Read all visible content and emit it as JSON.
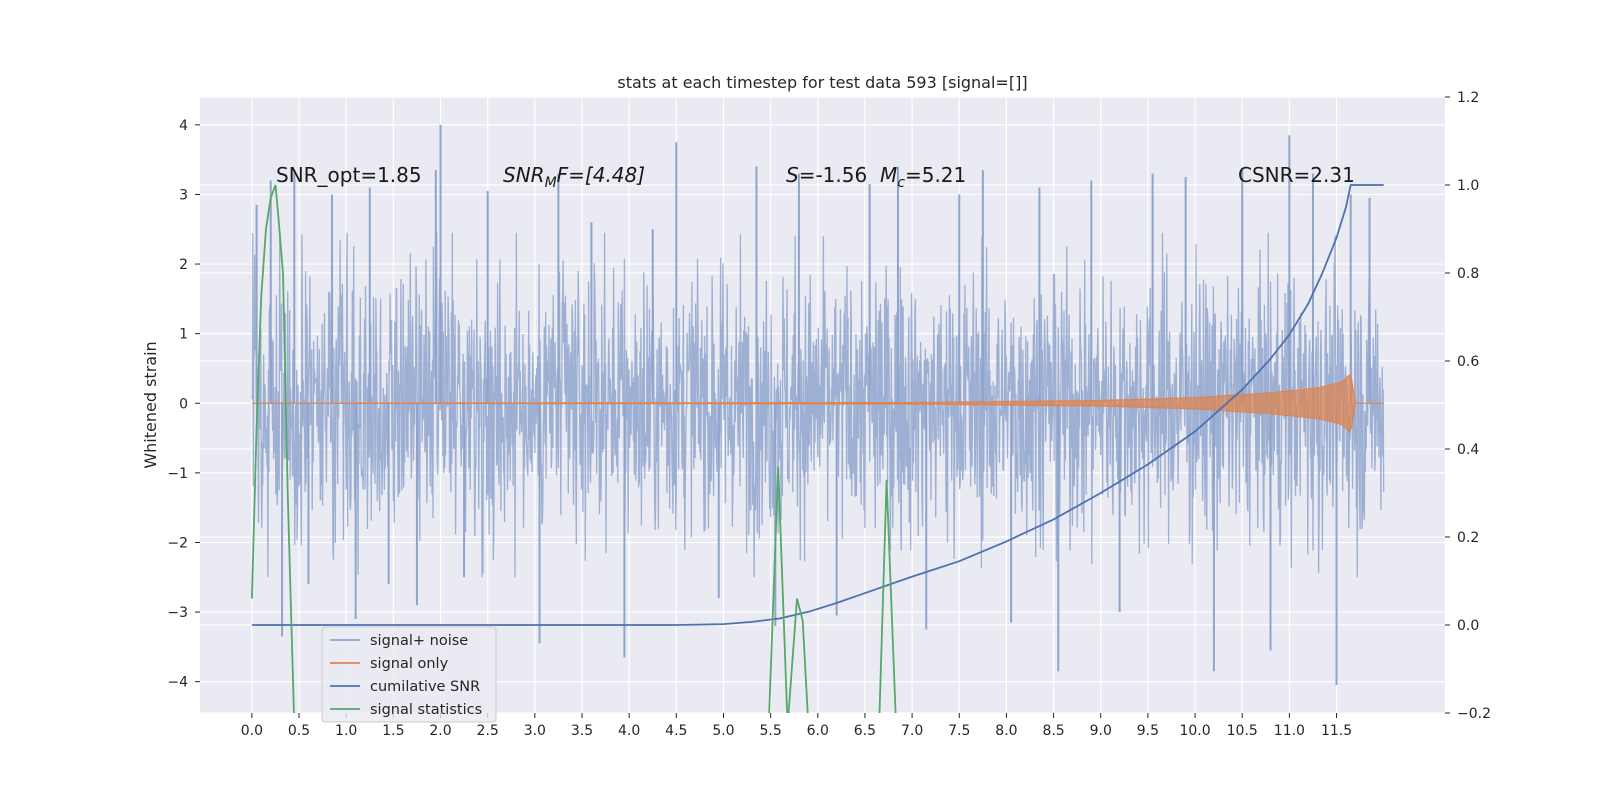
{
  "chart_data": {
    "type": "line",
    "title": "stats at each timestep for test data 593 [signal=[]]",
    "ylabel": "Whitened strain",
    "xlabel": "",
    "x_ticks": [
      "0.0",
      "0.5",
      "1.0",
      "1.5",
      "2.0",
      "2.5",
      "3.0",
      "3.5",
      "4.0",
      "4.5",
      "5.0",
      "5.5",
      "6.0",
      "6.5",
      "7.0",
      "7.5",
      "8.0",
      "8.5",
      "9.0",
      "9.5",
      "10.0",
      "10.5",
      "11.0",
      "11.5"
    ],
    "xlim": [
      -0.55,
      12.65
    ],
    "ylim_left": [
      -4.45,
      4.4
    ],
    "ylim_right": [
      -0.2,
      1.2
    ],
    "y_ticks_left": [
      "4",
      "3",
      "2",
      "1",
      "0",
      "−1",
      "−2",
      "−3",
      "−4"
    ],
    "y_ticks_right": [
      "1.2",
      "1.0",
      "0.8",
      "0.6",
      "0.4",
      "0.2",
      "0.0",
      "−0.2"
    ],
    "grid": true,
    "legend_position": "lower-left",
    "annotations": {
      "snr_opt": "SNR_opt=1.85",
      "snr_mf_label": "SNR",
      "snr_mf_sub": "M",
      "snr_mf_value": "F=[4.48]",
      "s_label": "S",
      "s_value": "=-1.56",
      "mc_label": "M",
      "mc_sub": "c",
      "mc_value": "=5.21",
      "csnr": "CSNR=2.31"
    },
    "series": [
      {
        "name": "signal+ noise",
        "color": "#8fa4cc",
        "axis": "left",
        "noise_envelope": {
          "x_start": 0.0,
          "x_end": 12.0,
          "typical_range": [
            -1.95,
            1.9
          ],
          "spikes": [
            [
              0.05,
              2.85
            ],
            [
              0.2,
              3.2
            ],
            [
              0.32,
              -3.35
            ],
            [
              0.45,
              3.35
            ],
            [
              0.6,
              -2.6
            ],
            [
              0.85,
              3.0
            ],
            [
              1.1,
              -3.1
            ],
            [
              1.25,
              3.1
            ],
            [
              1.45,
              -2.6
            ],
            [
              1.75,
              -2.9
            ],
            [
              1.95,
              3.35
            ],
            [
              2.0,
              4.0
            ],
            [
              2.25,
              -2.5
            ],
            [
              2.5,
              3.05
            ],
            [
              3.05,
              -3.45
            ],
            [
              3.25,
              3.3
            ],
            [
              3.6,
              2.6
            ],
            [
              3.95,
              -3.65
            ],
            [
              4.25,
              2.5
            ],
            [
              4.5,
              3.75
            ],
            [
              4.95,
              -2.8
            ],
            [
              5.35,
              3.4
            ],
            [
              5.55,
              -3.2
            ],
            [
              5.8,
              3.3
            ],
            [
              6.2,
              -3.05
            ],
            [
              6.55,
              3.15
            ],
            [
              6.85,
              3.4
            ],
            [
              7.15,
              -3.25
            ],
            [
              7.5,
              3.0
            ],
            [
              7.75,
              3.35
            ],
            [
              8.05,
              -3.15
            ],
            [
              8.35,
              3.1
            ],
            [
              8.55,
              -3.85
            ],
            [
              8.9,
              3.2
            ],
            [
              9.2,
              -3.0
            ],
            [
              9.55,
              3.3
            ],
            [
              9.9,
              3.25
            ],
            [
              10.2,
              -3.85
            ],
            [
              10.5,
              3.35
            ],
            [
              10.8,
              -3.55
            ],
            [
              11.0,
              3.85
            ],
            [
              11.25,
              3.3
            ],
            [
              11.5,
              -4.05
            ],
            [
              11.65,
              3.0
            ],
            [
              11.85,
              2.95
            ]
          ]
        }
      },
      {
        "name": "signal only",
        "color": "#dd8452",
        "axis": "left",
        "amplitude_points": [
          [
            0.0,
            0.0
          ],
          [
            7.0,
            0.01
          ],
          [
            9.0,
            0.04
          ],
          [
            10.0,
            0.08
          ],
          [
            10.8,
            0.15
          ],
          [
            11.3,
            0.22
          ],
          [
            11.55,
            0.3
          ],
          [
            11.65,
            0.42
          ],
          [
            11.7,
            0.0
          ],
          [
            12.0,
            0.0
          ]
        ]
      },
      {
        "name": "cumilative SNR",
        "color": "#4c72b0",
        "axis": "right",
        "points": [
          [
            0.0,
            0.0
          ],
          [
            4.5,
            0.0
          ],
          [
            5.0,
            0.002
          ],
          [
            5.3,
            0.007
          ],
          [
            5.6,
            0.015
          ],
          [
            5.9,
            0.03
          ],
          [
            6.2,
            0.05
          ],
          [
            6.6,
            0.08
          ],
          [
            7.0,
            0.11
          ],
          [
            7.5,
            0.145
          ],
          [
            8.0,
            0.19
          ],
          [
            8.5,
            0.24
          ],
          [
            9.0,
            0.3
          ],
          [
            9.5,
            0.365
          ],
          [
            10.0,
            0.44
          ],
          [
            10.5,
            0.535
          ],
          [
            10.8,
            0.605
          ],
          [
            11.0,
            0.66
          ],
          [
            11.2,
            0.73
          ],
          [
            11.35,
            0.8
          ],
          [
            11.5,
            0.88
          ],
          [
            11.6,
            0.95
          ],
          [
            11.65,
            1.0
          ],
          [
            12.0,
            1.0
          ]
        ]
      },
      {
        "name": "signal statistics",
        "color": "#55a868",
        "axis": "right",
        "points": [
          [
            0.0,
            0.06
          ],
          [
            0.05,
            0.45
          ],
          [
            0.1,
            0.75
          ],
          [
            0.15,
            0.9
          ],
          [
            0.2,
            0.97
          ],
          [
            0.25,
            1.0
          ],
          [
            0.28,
            0.93
          ],
          [
            0.33,
            0.8
          ],
          [
            0.38,
            0.3
          ],
          [
            0.45,
            -0.23
          ]
        ],
        "spike_segments": [
          [
            [
              5.48,
              -0.23
            ],
            [
              5.58,
              0.36
            ],
            [
              5.68,
              -0.23
            ]
          ],
          [
            [
              5.68,
              -0.23
            ],
            [
              5.78,
              0.06
            ],
            [
              5.84,
              0.01
            ],
            [
              5.9,
              -0.23
            ]
          ],
          [
            [
              6.65,
              -0.23
            ],
            [
              6.73,
              0.33
            ],
            [
              6.83,
              -0.23
            ]
          ]
        ]
      }
    ]
  }
}
